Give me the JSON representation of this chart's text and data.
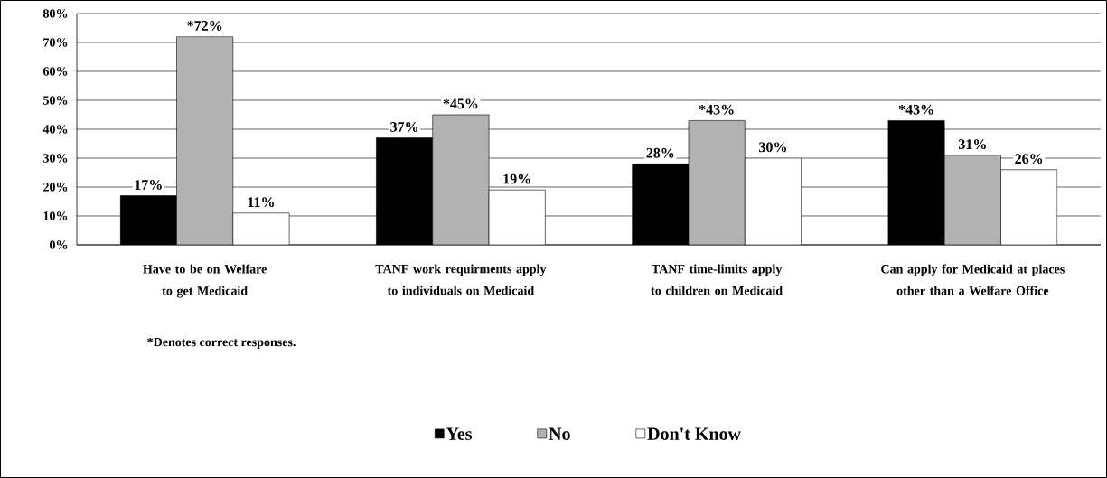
{
  "chart_data": {
    "type": "bar",
    "categories": [
      "Have to be on Welfare to get Medicaid",
      "TANF work requirments apply to individuals on Medicaid",
      "TANF time-limits apply to children on Medicaid",
      "Can apply for Medicaid at places other than a Welfare Office"
    ],
    "series": [
      {
        "name": "Yes",
        "color": "#000000",
        "values": [
          17,
          37,
          28,
          43
        ],
        "value_labels": [
          "17%",
          "37%",
          "28%",
          "*43%"
        ]
      },
      {
        "name": "No",
        "color": "#b2b2b2",
        "values": [
          72,
          45,
          43,
          31
        ],
        "value_labels": [
          "*72%",
          "*45%",
          "*43%",
          "31%"
        ]
      },
      {
        "name": "Don't Know",
        "color": "#ffffff",
        "values": [
          11,
          19,
          30,
          26
        ],
        "value_labels": [
          "11%",
          "19%",
          "30%",
          "26%"
        ]
      }
    ],
    "ylim": [
      0,
      80
    ],
    "yticks": [
      {
        "value": 0,
        "label": "0%"
      },
      {
        "value": 10,
        "label": "10%"
      },
      {
        "value": 20,
        "label": "20%"
      },
      {
        "value": 30,
        "label": "30%"
      },
      {
        "value": 40,
        "label": "40%"
      },
      {
        "value": 50,
        "label": "50%"
      },
      {
        "value": 60,
        "label": "60%"
      },
      {
        "value": 70,
        "label": "70%"
      },
      {
        "value": 80,
        "label": "80%"
      }
    ],
    "grid": "y",
    "legend": "bottom",
    "annotations": [
      "*Denotes correct responses."
    ]
  }
}
